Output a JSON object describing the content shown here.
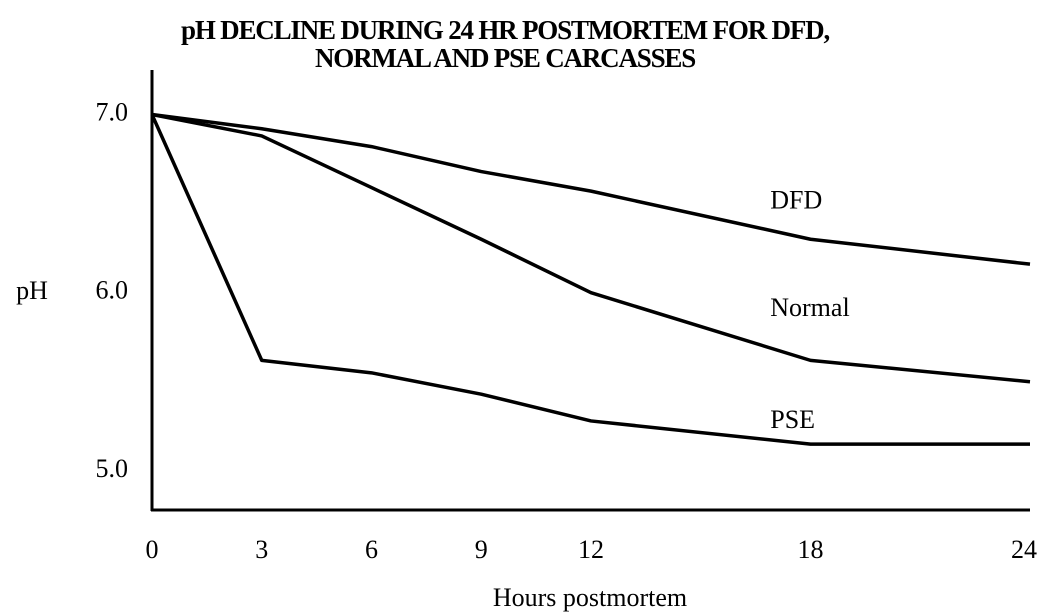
{
  "chart_data": {
    "type": "line",
    "title": [
      "pH DECLINE DURING 24 HR POSTMORTEM FOR DFD,",
      "NORMAL AND PSE CARCASSES"
    ],
    "x_label": "Hours postmortem",
    "y_label": "pH",
    "x": [
      0,
      3,
      6,
      9,
      12,
      18,
      24
    ],
    "series": [
      {
        "name": "DFD",
        "color": "#000000",
        "values": [
          7.0,
          6.92,
          6.82,
          6.68,
          6.57,
          6.3,
          6.16
        ]
      },
      {
        "name": "Normal",
        "color": "#000000",
        "values": [
          7.0,
          6.88,
          6.59,
          6.3,
          6.0,
          5.62,
          5.5
        ]
      },
      {
        "name": "PSE",
        "color": "#000000",
        "values": [
          7.0,
          5.62,
          5.55,
          5.43,
          5.28,
          5.15,
          5.15
        ]
      }
    ],
    "xlim": [
      0,
      24
    ],
    "xticks": [
      0,
      3,
      6,
      9,
      12,
      18,
      24
    ],
    "ylim": [
      4.78,
      7.25
    ],
    "yticks": [
      {
        "value": 7,
        "label": "7.0"
      },
      {
        "value": 6,
        "label": "6.0"
      },
      {
        "value": 5,
        "label": "5.0"
      }
    ],
    "grid": false
  }
}
